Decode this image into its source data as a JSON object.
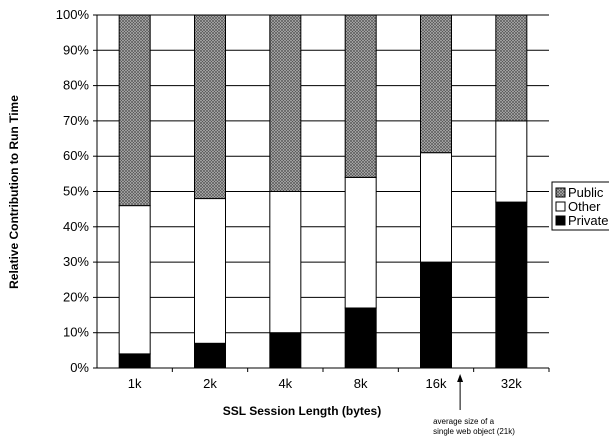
{
  "chart_data": {
    "type": "bar",
    "stacked": true,
    "categories": [
      "1k",
      "2k",
      "4k",
      "8k",
      "16k",
      "32k"
    ],
    "series": [
      {
        "name": "Private",
        "values": [
          4,
          7,
          10,
          17,
          30,
          47
        ],
        "color": "#000000",
        "pattern": "solid"
      },
      {
        "name": "Other",
        "values": [
          42,
          41,
          40,
          37,
          31,
          23
        ],
        "color": "#ffffff",
        "pattern": "solid"
      },
      {
        "name": "Public",
        "values": [
          54,
          52,
          50,
          46,
          39,
          30
        ],
        "color": "#9a9a9a",
        "pattern": "crosshatch"
      }
    ],
    "xlabel": "SSL Session Length (bytes)",
    "ylabel": "Relative Contribution to Run Time",
    "ylim": [
      0,
      100
    ],
    "yticks": [
      "0%",
      "10%",
      "20%",
      "30%",
      "40%",
      "50%",
      "60%",
      "70%",
      "80%",
      "90%",
      "100%"
    ],
    "grid": true,
    "legend_position": "right",
    "legend_order": [
      "Public",
      "Other",
      "Private"
    ],
    "annotation": {
      "lines": [
        "average size of a",
        "single web object (21k)"
      ],
      "arrow": "up",
      "near_category_between": [
        "16k",
        "32k"
      ]
    }
  }
}
